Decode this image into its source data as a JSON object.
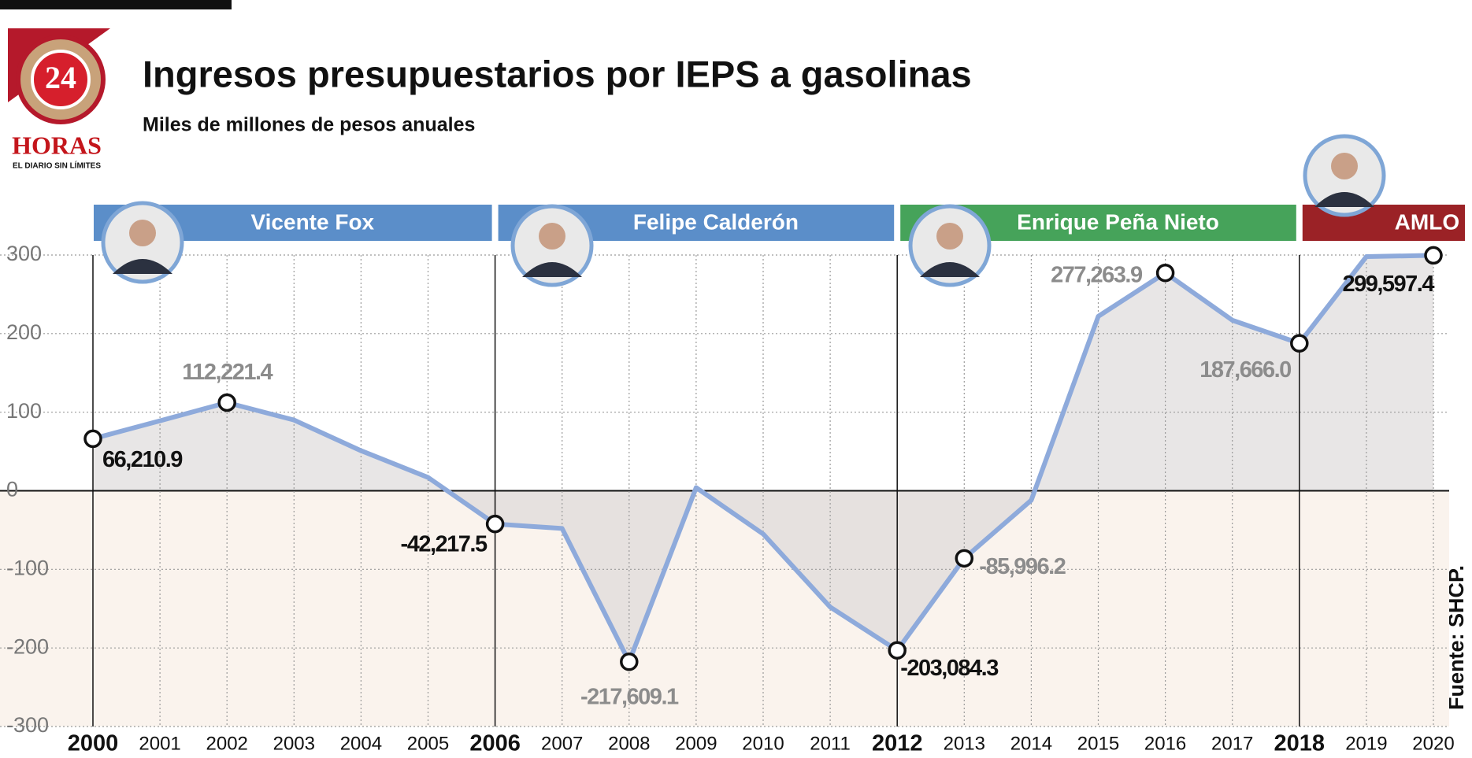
{
  "chart_data": {
    "type": "line",
    "title": "Ingresos presupuestarios por IEPS a gasolinas",
    "subtitle": "Miles de millones de pesos anuales",
    "source": "Fuente: SHCP.",
    "logo": {
      "number": "24",
      "name": "HORAS",
      "tagline": "EL DIARIO SIN LÍMITES"
    },
    "categories": [
      "2000",
      "2001",
      "2002",
      "2003",
      "2004",
      "2005",
      "2006",
      "2007",
      "2008",
      "2009",
      "2010",
      "2011",
      "2012",
      "2013",
      "2014",
      "2015",
      "2016",
      "2017",
      "2018",
      "2019",
      "2020"
    ],
    "series": [
      {
        "name": "IEPS gasolinas",
        "color": "#8eaadb",
        "values": [
          66.2109,
          89,
          112.2214,
          90,
          51,
          17,
          -42.2175,
          -48,
          -217.6091,
          4,
          -55,
          -148,
          -203.0843,
          -85.9962,
          -12,
          222,
          277.2639,
          217,
          187.666,
          298,
          299.5974
        ],
        "value_labels": [
          "66,210.9",
          null,
          "112,221.4",
          null,
          null,
          null,
          "-42,217.5",
          null,
          "-217,609.1",
          null,
          null,
          null,
          "-203,084.3",
          "-85,996.2",
          null,
          null,
          "277,263.9",
          null,
          "187,666.0",
          null,
          "299,597.4"
        ],
        "value_label_colors": [
          "#111111",
          null,
          "#8c8c8c",
          null,
          null,
          null,
          "#111111",
          null,
          "#8c8c8c",
          null,
          null,
          null,
          "#111111",
          "#8c8c8c",
          null,
          null,
          "#8c8c8c",
          null,
          "#8c8c8c",
          null,
          "#111111"
        ]
      }
    ],
    "periods": [
      {
        "name": "Vicente Fox",
        "start": "2000",
        "end": "2006",
        "color": "#5b8ec9"
      },
      {
        "name": "Felipe Calderón",
        "start": "2006",
        "end": "2012",
        "color": "#5b8ec9"
      },
      {
        "name": "Enrique Peña Nieto",
        "start": "2012",
        "end": "2018",
        "color": "#46a35a"
      },
      {
        "name": "AMLO",
        "start": "2018",
        "end": "2020",
        "color": "#9b2226"
      }
    ],
    "ylim": [
      -300,
      300
    ],
    "yticks": [
      -300,
      -200,
      -100,
      0,
      100,
      200,
      300
    ],
    "grid": true
  }
}
